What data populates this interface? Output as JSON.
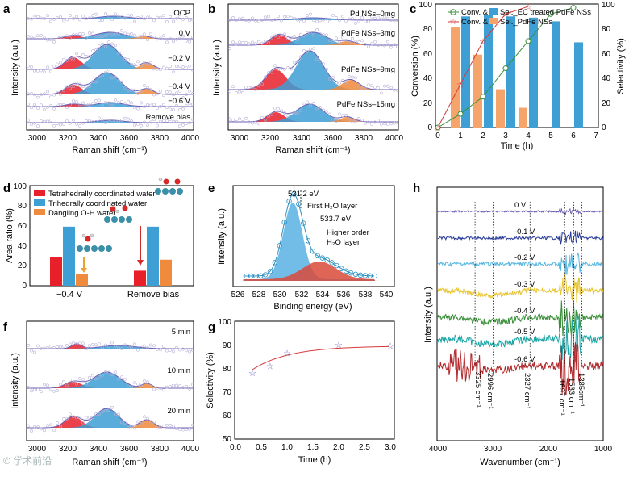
{
  "colors": {
    "red": "#e8202a",
    "blue": "#3d9fd3",
    "orange": "#f08a3c",
    "purple": "#6b5fb5",
    "green": "#3a8f3a",
    "lightblue": "#5ab8e0",
    "navy": "#2a3c9a",
    "yellow": "#e8c430",
    "darkred": "#b0282b",
    "teal": "#1aa5a5"
  },
  "panel_a": {
    "label": "a",
    "xlabel": "Raman shift (cm⁻¹)",
    "ylabel": "Intensity (a.u.)",
    "xticks": [
      "3000",
      "3200",
      "3400",
      "3600",
      "3800",
      "4000"
    ],
    "traces": [
      "OCP",
      "0 V",
      "−0.2 V",
      "−0.4 V",
      "−0.6 V",
      "Remove bias"
    ]
  },
  "panel_b": {
    "label": "b",
    "xlabel": "Raman shift (cm⁻¹)",
    "ylabel": "Intensity (a.u.)",
    "xticks": [
      "3000",
      "3200",
      "3400",
      "3600",
      "3800",
      "4000"
    ],
    "traces": [
      "Pd NSs–0mg",
      "PdFe NSs–3mg",
      "PdFe NSs–9mg",
      "PdFe NSs–15mg"
    ]
  },
  "panel_c": {
    "label": "c",
    "xlabel": "Time (h)",
    "ylabel_left": "Conversion (%)",
    "ylabel_right": "Selectivity (%)",
    "xticks": [
      "0",
      "1",
      "2",
      "3",
      "4",
      "5",
      "6",
      "7"
    ],
    "yticks": [
      "0",
      "20",
      "40",
      "60",
      "80",
      "100"
    ],
    "legend": [
      "Conv. &",
      "Conv. &",
      "Sel._EC treated PdFe NSs",
      "Sel._PdFe NSs"
    ],
    "chart_data": {
      "type": "bar+line",
      "x": [
        0,
        1,
        2,
        3,
        4,
        5,
        6
      ],
      "series": [
        {
          "name": "Conv. & Sel._EC treated PdFe NSs",
          "kind": "line",
          "x": [
            0,
            1,
            2,
            3,
            4,
            5,
            6
          ],
          "values": [
            0,
            11,
            25,
            48,
            70,
            92,
            97
          ]
        },
        {
          "name": "Conv. & Sel._PdFe NSs",
          "kind": "line",
          "x": [
            0,
            1,
            2,
            3,
            4
          ],
          "values": [
            0,
            35,
            70,
            92,
            98
          ]
        },
        {
          "name": "Sel._EC treated PdFe NSs",
          "kind": "bar",
          "x": [
            1,
            2,
            3,
            4,
            5,
            6
          ],
          "values": [
            90,
            91,
            90,
            89,
            86,
            69
          ]
        },
        {
          "name": "Sel._PdFe NSs",
          "kind": "bar",
          "x": [
            1,
            2,
            3,
            4
          ],
          "values": [
            81,
            59,
            31,
            16
          ]
        }
      ],
      "xlim": [
        0,
        7
      ],
      "ylim": [
        0,
        100
      ]
    }
  },
  "panel_d": {
    "label": "d",
    "ylabel": "Area ratio (%)",
    "yticks": [
      "0",
      "20",
      "40",
      "60",
      "80",
      "100"
    ],
    "categories": [
      "−0.4 V",
      "Remove bias"
    ],
    "legend": [
      "Tetrahedrally coordinated water",
      "Trihedrally coordinated water",
      "Dangling O-H water"
    ],
    "chart_data": {
      "type": "bar",
      "categories": [
        "−0.4 V",
        "Remove bias"
      ],
      "series": [
        {
          "name": "Tetrahedrally coordinated water",
          "values": [
            29,
            15
          ]
        },
        {
          "name": "Trihedrally coordinated water",
          "values": [
            59,
            59
          ]
        },
        {
          "name": "Dangling O-H water",
          "values": [
            12,
            26
          ]
        }
      ],
      "ylim": [
        0,
        100
      ]
    }
  },
  "panel_e": {
    "label": "e",
    "xlabel": "Binding energy (eV)",
    "ylabel": "Intensity (a.u.)",
    "xticks": [
      "526",
      "528",
      "530",
      "532",
      "534",
      "536",
      "538",
      "540"
    ],
    "annotations": [
      "531.2 eV",
      "First H₂O layer",
      "533.7 eV",
      "Higher order",
      "H₂O layer"
    ]
  },
  "panel_f": {
    "label": "f",
    "xlabel": "Raman shift (cm⁻¹)",
    "ylabel": "Intensity (a.u.)",
    "xticks": [
      "3000",
      "3200",
      "3400",
      "3600",
      "3800",
      "4000"
    ],
    "traces": [
      "5 min",
      "10 min",
      "20 min"
    ]
  },
  "panel_g": {
    "label": "g",
    "xlabel": "Time (h)",
    "ylabel": "Selectivity (%)",
    "xticks": [
      "0.0",
      "0.5",
      "1.0",
      "1.5",
      "2.0",
      "2.5",
      "3.0"
    ],
    "yticks": [
      "50",
      "60",
      "70",
      "80",
      "90",
      "100"
    ],
    "chart_data": {
      "type": "scatter",
      "x": [
        0.33,
        0.67,
        1.0,
        2.0,
        3.0
      ],
      "values": [
        78,
        81,
        86.5,
        90,
        89.5
      ],
      "xlim": [
        0,
        3
      ],
      "ylim": [
        50,
        100
      ]
    }
  },
  "panel_h": {
    "label": "h",
    "xlabel": "Wavenumber (cm⁻¹)",
    "ylabel": "Intensity (a.u.)",
    "xticks": [
      "4000",
      "3000",
      "2000",
      "1000"
    ],
    "traces": [
      "0 V",
      "-0.1 V",
      "-0.2 V",
      "-0.3 V",
      "-0.4 V",
      "-0.5 V",
      "-0.6 V"
    ],
    "peaks": [
      "3325 cm⁻¹",
      "2996 cm⁻¹",
      "2327 cm⁻¹",
      "1697 cm⁻¹",
      "1533 cm⁻¹",
      "1385cm⁻¹"
    ]
  },
  "watermark": "© 学术前沿"
}
